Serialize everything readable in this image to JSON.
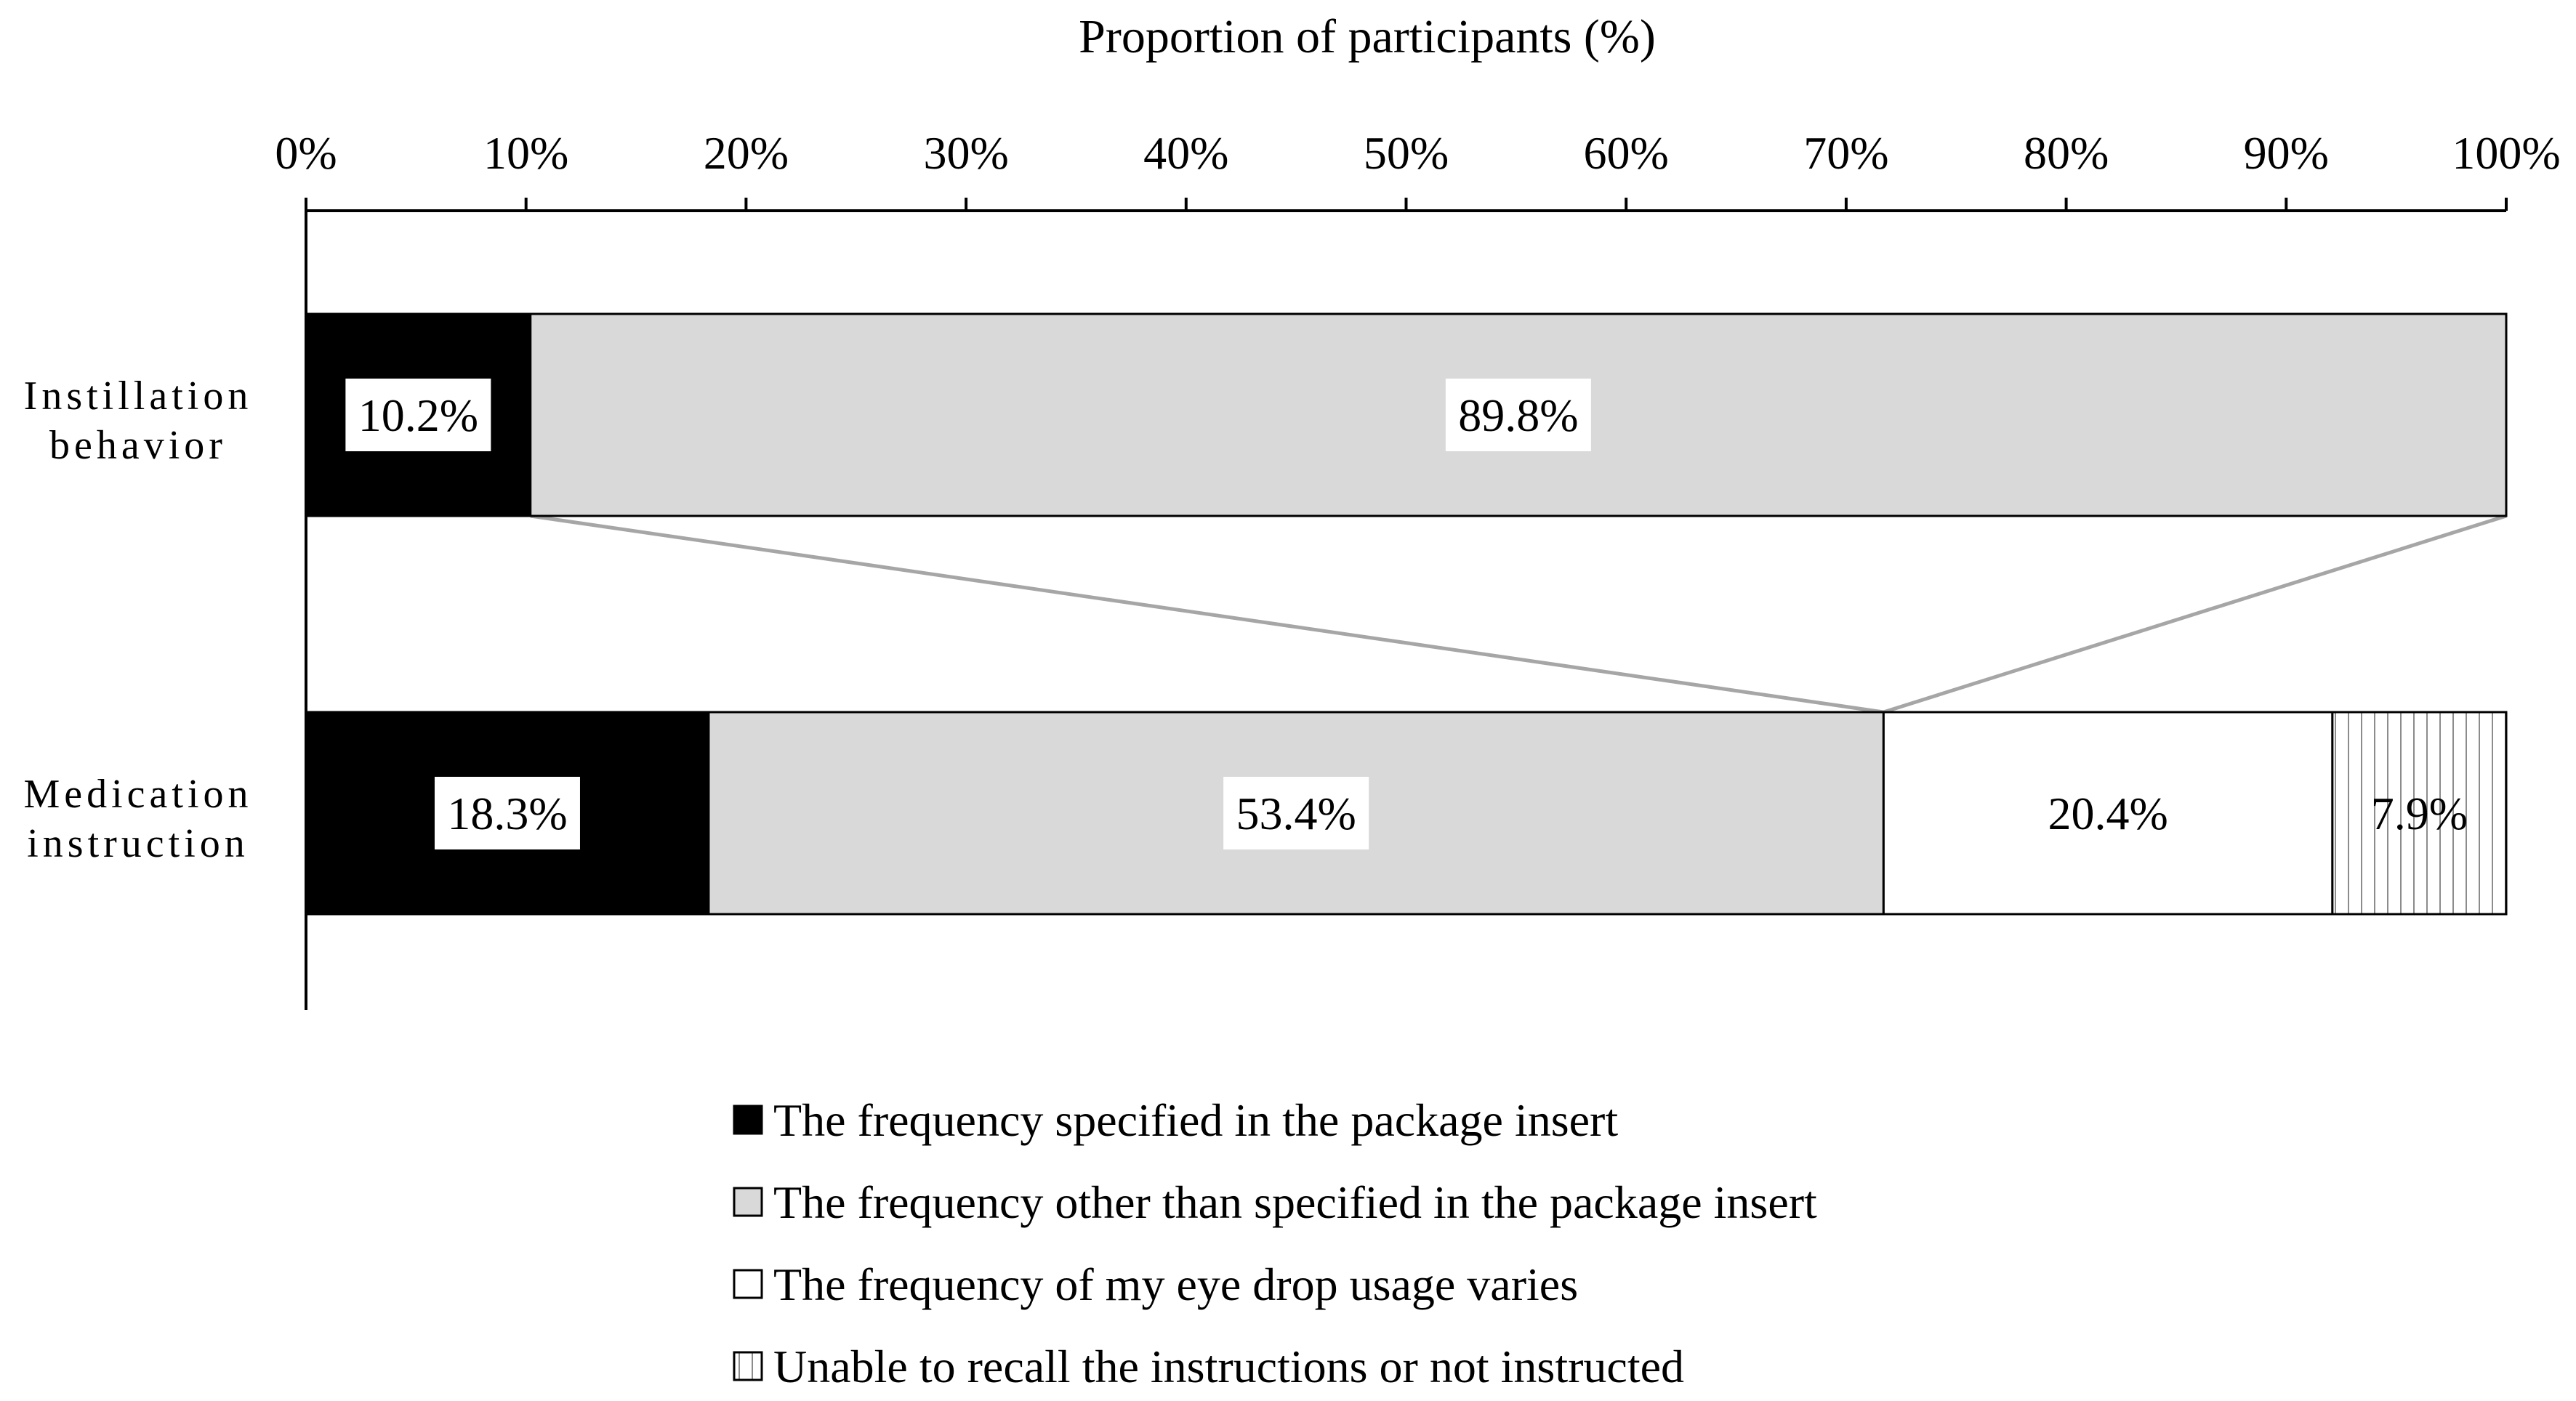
{
  "chart_data": {
    "type": "bar",
    "orientation": "horizontal",
    "stacked": true,
    "normalized_percent": true,
    "title": "",
    "xlabel": "Proportion of participants (%)",
    "ylabel": "",
    "xlim": [
      0,
      100
    ],
    "x_ticks": [
      0,
      10,
      20,
      30,
      40,
      50,
      60,
      70,
      80,
      90,
      100
    ],
    "x_tick_labels": [
      "0%",
      "10%",
      "20%",
      "30%",
      "40%",
      "50%",
      "60%",
      "70%",
      "80%",
      "90%",
      "100%"
    ],
    "x_axis_position": "top",
    "grid": false,
    "legend_position": "bottom",
    "categories": [
      "Instillation behavior",
      "Medication instruction"
    ],
    "category_label_lines": [
      [
        "Instillation",
        "behavior"
      ],
      [
        "Medication",
        "instruction"
      ]
    ],
    "series": [
      {
        "name": "The frequency specified in the package insert",
        "color": "#000000",
        "pattern": "solid",
        "values": [
          10.2,
          18.3
        ],
        "labels": [
          "10.2%",
          "18.3%"
        ]
      },
      {
        "name": "The frequency other than specified in the package insert",
        "color": "#d9d9d9",
        "pattern": "solid",
        "values": [
          89.8,
          53.4
        ],
        "labels": [
          "89.8%",
          "53.4%"
        ]
      },
      {
        "name": "The frequency of my eye drop usage varies",
        "color": "#ffffff",
        "pattern": "solid",
        "values": [
          null,
          20.4
        ],
        "labels": [
          null,
          "20.4%"
        ]
      },
      {
        "name": "Unable to recall the instructions or not instructed",
        "color": "#ffffff",
        "pattern": "vertical-lines",
        "values": [
          null,
          7.9
        ],
        "labels": [
          null,
          "7.9%"
        ]
      }
    ],
    "connector_color": "#a6a6a6"
  }
}
